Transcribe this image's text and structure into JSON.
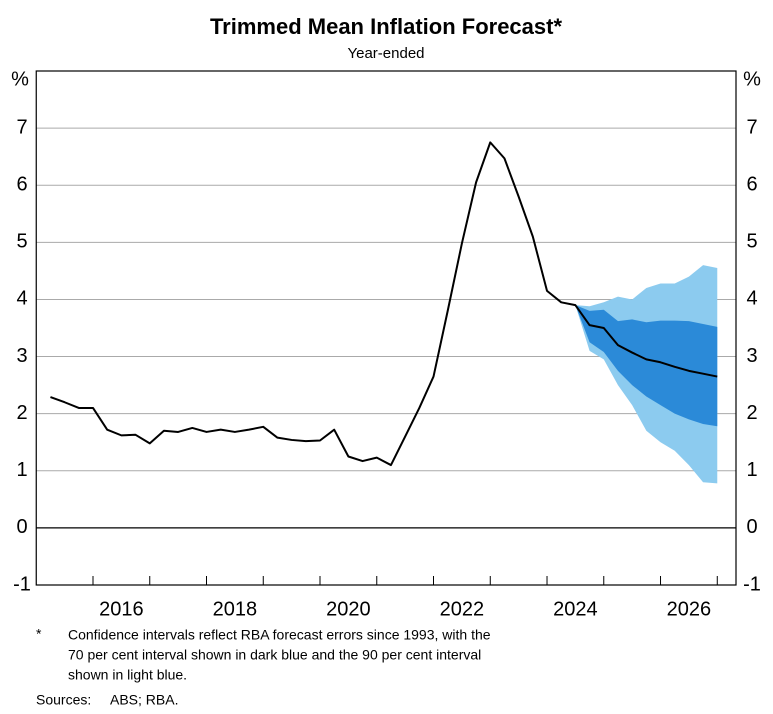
{
  "chart_data": {
    "type": "line",
    "title": "Trimmed Mean Inflation Forecast*",
    "subtitle": "Year-ended",
    "y_label": "%",
    "x": [
      2015.25,
      2015.5,
      2015.75,
      2016.0,
      2016.25,
      2016.5,
      2016.75,
      2017.0,
      2017.25,
      2017.5,
      2017.75,
      2018.0,
      2018.25,
      2018.5,
      2018.75,
      2019.0,
      2019.25,
      2019.5,
      2019.75,
      2020.0,
      2020.25,
      2020.5,
      2020.75,
      2021.0,
      2021.25,
      2021.5,
      2021.75,
      2022.0,
      2022.25,
      2022.5,
      2022.75,
      2023.0,
      2023.25,
      2023.5,
      2023.75,
      2024.0,
      2024.25,
      2024.5,
      2024.75,
      2025.0,
      2025.25,
      2025.5,
      2025.75,
      2026.0,
      2026.25,
      2026.5,
      2026.75,
      2027.0
    ],
    "series": [
      {
        "color": "#000000",
        "values": [
          2.29,
          2.2,
          2.1,
          2.1,
          1.72,
          1.62,
          1.63,
          1.48,
          1.7,
          1.68,
          1.75,
          1.68,
          1.72,
          1.68,
          1.72,
          1.77,
          1.58,
          1.54,
          1.52,
          1.53,
          1.72,
          1.25,
          1.17,
          1.23,
          1.1,
          1.6,
          2.1,
          2.65,
          3.8,
          4.98,
          6.05,
          6.75,
          6.47,
          5.8,
          5.1,
          4.15,
          3.95,
          3.9,
          3.55,
          3.5,
          3.2,
          3.07,
          2.95,
          2.9,
          2.82,
          2.75,
          2.7,
          2.65
        ]
      }
    ],
    "band_x": [
      2024.5,
      2024.75,
      2025.0,
      2025.25,
      2025.5,
      2025.75,
      2026.0,
      2026.25,
      2026.5,
      2026.75,
      2027.0
    ],
    "bands": [
      {
        "color": "#8ccbef",
        "upper": [
          3.9,
          3.88,
          3.95,
          4.05,
          4.0,
          4.2,
          4.28,
          4.28,
          4.4,
          4.6,
          4.55
        ],
        "lower": [
          3.9,
          3.1,
          2.95,
          2.5,
          2.15,
          1.7,
          1.5,
          1.35,
          1.1,
          0.8,
          0.78
        ]
      },
      {
        "color": "#2b8ad8",
        "upper": [
          3.9,
          3.8,
          3.82,
          3.62,
          3.65,
          3.6,
          3.63,
          3.63,
          3.62,
          3.57,
          3.52
        ],
        "lower": [
          3.9,
          3.25,
          3.08,
          2.75,
          2.5,
          2.3,
          2.15,
          2.0,
          1.9,
          1.82,
          1.78
        ]
      }
    ],
    "xlim": [
      2015,
      2027.33
    ],
    "xticks": [
      {
        "value": 2016.5,
        "label": "2016"
      },
      {
        "value": 2018.5,
        "label": "2018"
      },
      {
        "value": 2020.5,
        "label": "2020"
      },
      {
        "value": 2022.5,
        "label": "2022"
      },
      {
        "value": 2024.5,
        "label": "2024"
      },
      {
        "value": 2026.5,
        "label": "2026"
      }
    ],
    "xtick_marks": [
      2016,
      2017,
      2018,
      2019,
      2020,
      2021,
      2022,
      2023,
      2024,
      2025,
      2026,
      2027
    ],
    "ylim": [
      -1,
      8
    ],
    "yticks": [
      -1,
      0,
      1,
      2,
      3,
      4,
      5,
      6,
      7
    ],
    "grid": true,
    "notes": {
      "marker": "*",
      "lines": [
        "Confidence intervals reflect RBA forecast errors since 1993, with the",
        "70 per cent interval shown in dark blue and the 90 per cent interval",
        "shown in light blue."
      ],
      "sources_label": "Sources:",
      "sources": "ABS; RBA."
    }
  }
}
